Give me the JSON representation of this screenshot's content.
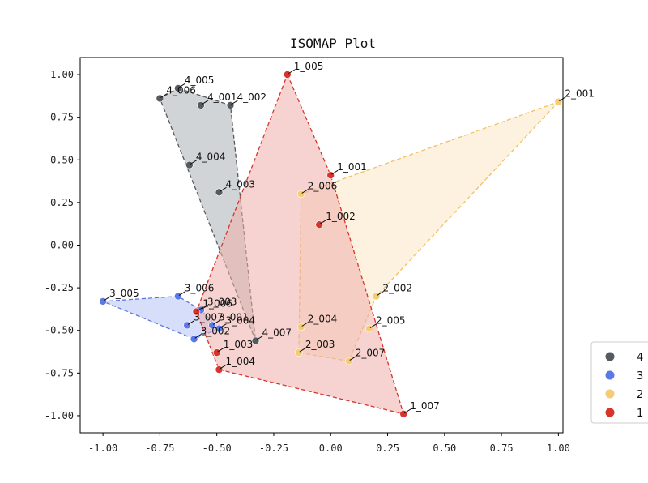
{
  "chart_data": {
    "type": "scatter",
    "title": "ISOMAP Plot",
    "xlabel": "",
    "ylabel": "",
    "xlim": [
      -1.1,
      1.02
    ],
    "ylim": [
      -1.1,
      1.1
    ],
    "xticks": [
      "-1.00",
      "-0.75",
      "-0.50",
      "-0.25",
      "0.00",
      "0.25",
      "0.50",
      "0.75",
      "1.00"
    ],
    "xtick_values": [
      -1.0,
      -0.75,
      -0.5,
      -0.25,
      0.0,
      0.25,
      0.5,
      0.75,
      1.0
    ],
    "yticks": [
      "1.00",
      "0.75",
      "0.50",
      "0.25",
      "0.00",
      "-0.25",
      "-0.50",
      "-0.75",
      "-1.00"
    ],
    "ytick_values": [
      1.0,
      0.75,
      0.5,
      0.25,
      0.0,
      -0.25,
      -0.5,
      -0.75,
      -1.0
    ],
    "grid": false,
    "legend_position": "right-bottom",
    "series": [
      {
        "name": "4",
        "color": "#555b61",
        "fill": "#a9b1b4",
        "points": [
          {
            "label": "4_001",
            "x": -0.57,
            "y": 0.82
          },
          {
            "label": "4_002",
            "x": -0.44,
            "y": 0.82
          },
          {
            "label": "4_003",
            "x": -0.49,
            "y": 0.31
          },
          {
            "label": "4_004",
            "x": -0.62,
            "y": 0.47
          },
          {
            "label": "4_005",
            "x": -0.67,
            "y": 0.92
          },
          {
            "label": "4_006",
            "x": -0.75,
            "y": 0.86
          },
          {
            "label": "4_007",
            "x": -0.33,
            "y": -0.56
          }
        ],
        "hull": [
          "4_005",
          "4_002",
          "4_007",
          "4_006"
        ]
      },
      {
        "name": "3",
        "color": "#5b78e8",
        "fill": "#b6c3f4",
        "points": [
          {
            "label": "3_001",
            "x": -0.52,
            "y": -0.47
          },
          {
            "label": "3_002",
            "x": -0.6,
            "y": -0.55
          },
          {
            "label": "3_003",
            "x": -0.57,
            "y": -0.38
          },
          {
            "label": "3_004",
            "x": -0.49,
            "y": -0.49
          },
          {
            "label": "3_005",
            "x": -1.0,
            "y": -0.33
          },
          {
            "label": "3_006",
            "x": -0.67,
            "y": -0.3
          },
          {
            "label": "3_007",
            "x": -0.63,
            "y": -0.47
          }
        ],
        "hull": [
          "3_005",
          "3_006",
          "3_003",
          "3_004",
          "3_002"
        ]
      },
      {
        "name": "2",
        "color": "#f5cb73",
        "fill": "#fbe6c4",
        "points": [
          {
            "label": "2_001",
            "x": 1.0,
            "y": 0.84
          },
          {
            "label": "2_002",
            "x": 0.2,
            "y": -0.3
          },
          {
            "label": "2_003",
            "x": -0.14,
            "y": -0.63
          },
          {
            "label": "2_004",
            "x": -0.13,
            "y": -0.48
          },
          {
            "label": "2_005",
            "x": 0.17,
            "y": -0.49
          },
          {
            "label": "2_006",
            "x": -0.13,
            "y": 0.3
          },
          {
            "label": "2_007",
            "x": 0.08,
            "y": -0.68
          }
        ],
        "hull": [
          "2_001",
          "2_002",
          "2_007",
          "2_003",
          "2_006"
        ]
      },
      {
        "name": "1",
        "color": "#d9342b",
        "fill": "#eeaeaa",
        "points": [
          {
            "label": "1_001",
            "x": 0.0,
            "y": 0.41
          },
          {
            "label": "1_002",
            "x": -0.05,
            "y": 0.12
          },
          {
            "label": "1_003",
            "x": -0.5,
            "y": -0.63
          },
          {
            "label": "1_004",
            "x": -0.49,
            "y": -0.73
          },
          {
            "label": "1_005",
            "x": -0.19,
            "y": 1.0
          },
          {
            "label": "1_006",
            "x": -0.59,
            "y": -0.39
          },
          {
            "label": "1_007",
            "x": 0.32,
            "y": -0.99
          }
        ],
        "hull": [
          "1_005",
          "1_001",
          "1_007",
          "1_004",
          "1_006"
        ]
      }
    ]
  }
}
